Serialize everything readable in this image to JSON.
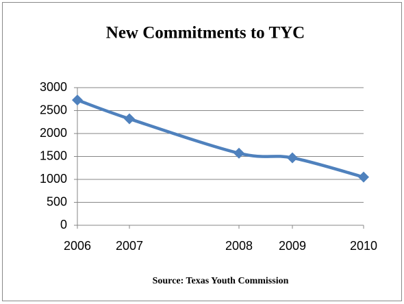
{
  "chart_data": {
    "type": "line",
    "title": "New Commitments to TYC",
    "source": "Source: Texas Youth Commission",
    "categories": [
      "2006",
      "2007",
      "2008",
      "2009",
      "2010"
    ],
    "series": [
      {
        "name": "New Commitments",
        "color": "#4f81bd",
        "values": [
          2730,
          2320,
          1570,
          1470,
          1050
        ]
      }
    ],
    "ylim": [
      0,
      3000
    ],
    "yticks": [
      0,
      500,
      1000,
      1500,
      2000,
      2500,
      3000
    ],
    "grid": true
  }
}
